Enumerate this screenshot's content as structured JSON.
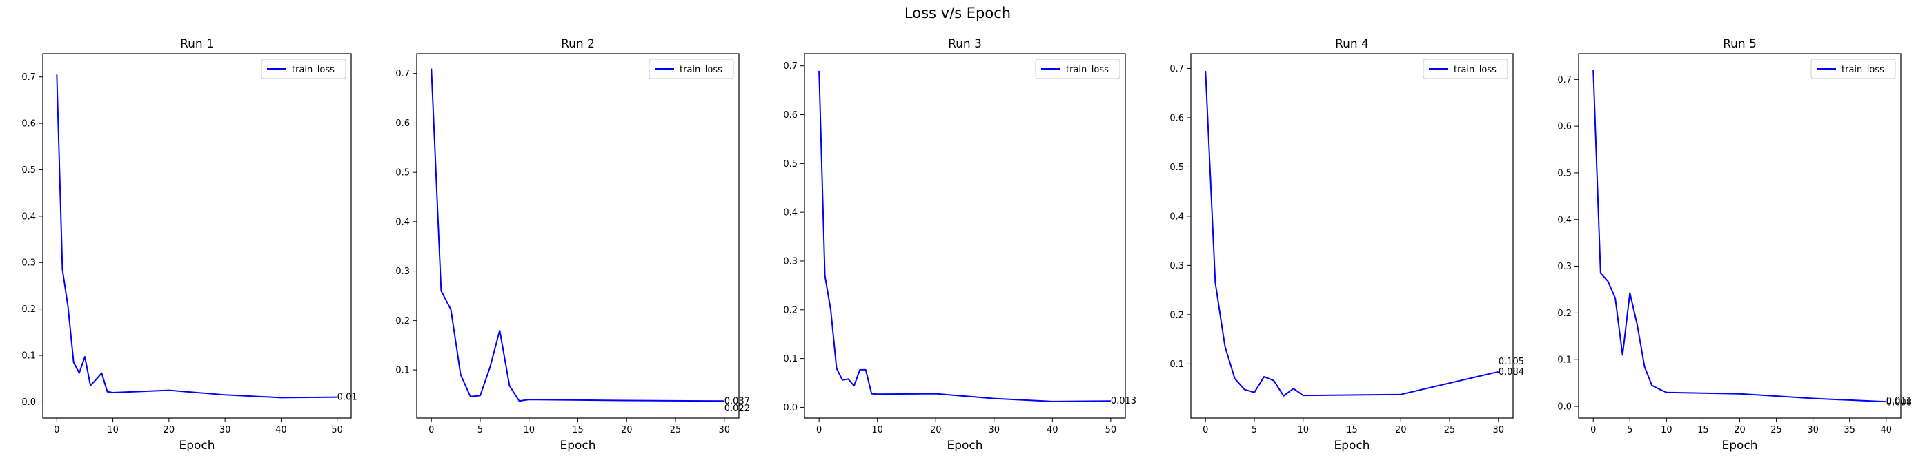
{
  "figure": {
    "title": "Loss v/s Epoch"
  },
  "colors": {
    "line": "#0000ff",
    "axes": "#000000",
    "background": "#ffffff"
  },
  "chart_data": [
    {
      "type": "line",
      "title": "Run 1",
      "xlabel": "Epoch",
      "ylabel": "",
      "xlim": [
        -2.5,
        52.5
      ],
      "ylim": [
        -0.035,
        0.75
      ],
      "xticks": [
        0,
        10,
        20,
        30,
        40,
        50
      ],
      "yticks": [
        0.0,
        0.1,
        0.2,
        0.3,
        0.4,
        0.5,
        0.6,
        0.7
      ],
      "legend": "upper right",
      "grid": false,
      "series": [
        {
          "name": "train_loss",
          "x": [
            0,
            1,
            2,
            3,
            4,
            5,
            6,
            7,
            8,
            9,
            10,
            20,
            30,
            40,
            50
          ],
          "y": [
            0.705,
            0.285,
            0.205,
            0.085,
            0.062,
            0.097,
            0.035,
            0.048,
            0.062,
            0.022,
            0.02,
            0.025,
            0.015,
            0.009,
            0.01
          ]
        }
      ],
      "annotations": [
        {
          "x": 50,
          "y": 0.01,
          "text": "0.01"
        }
      ]
    },
    {
      "type": "line",
      "title": "Run 2",
      "xlabel": "Epoch",
      "ylabel": "",
      "xlim": [
        -1.5,
        31.5
      ],
      "ylim": [
        0.0025,
        0.74
      ],
      "xticks": [
        0,
        5,
        10,
        15,
        20,
        25,
        30
      ],
      "yticks": [
        0.1,
        0.2,
        0.3,
        0.4,
        0.5,
        0.6,
        0.7
      ],
      "legend": "upper right",
      "grid": false,
      "series": [
        {
          "name": "train_loss",
          "x": [
            0,
            1,
            2,
            3,
            4,
            5,
            6,
            7,
            8,
            9,
            10,
            20,
            30
          ],
          "y": [
            0.71,
            0.26,
            0.222,
            0.09,
            0.046,
            0.048,
            0.105,
            0.18,
            0.068,
            0.037,
            0.04,
            0.038,
            0.037
          ]
        }
      ],
      "annotations": [
        {
          "x": 30,
          "y": 0.037,
          "text": "0.037"
        },
        {
          "x": 30,
          "y": 0.022,
          "text": "0.022"
        }
      ]
    },
    {
      "type": "line",
      "title": "Run 3",
      "xlabel": "Epoch",
      "ylabel": "",
      "xlim": [
        -2.5,
        52.5
      ],
      "ylim": [
        -0.022,
        0.725
      ],
      "xticks": [
        0,
        10,
        20,
        30,
        40,
        50
      ],
      "yticks": [
        0.0,
        0.1,
        0.2,
        0.3,
        0.4,
        0.5,
        0.6,
        0.7
      ],
      "legend": "upper right",
      "grid": false,
      "series": [
        {
          "name": "train_loss",
          "x": [
            0,
            1,
            2,
            3,
            4,
            5,
            6,
            7,
            8,
            9,
            10,
            20,
            30,
            40,
            50
          ],
          "y": [
            0.69,
            0.27,
            0.2,
            0.08,
            0.056,
            0.058,
            0.044,
            0.077,
            0.077,
            0.028,
            0.027,
            0.028,
            0.018,
            0.012,
            0.013
          ]
        }
      ],
      "annotations": [
        {
          "x": 50,
          "y": 0.013,
          "text": "0.013"
        }
      ]
    },
    {
      "type": "line",
      "title": "Run 4",
      "xlabel": "Epoch",
      "ylabel": "",
      "xlim": [
        -1.5,
        31.5
      ],
      "ylim": [
        -0.01,
        0.73
      ],
      "xticks": [
        0,
        5,
        10,
        15,
        20,
        25,
        30
      ],
      "yticks": [
        0.1,
        0.2,
        0.3,
        0.4,
        0.5,
        0.6,
        0.7
      ],
      "legend": "upper right",
      "grid": false,
      "series": [
        {
          "name": "train_loss",
          "x": [
            0,
            1,
            2,
            3,
            4,
            5,
            6,
            7,
            8,
            9,
            10,
            20,
            30
          ],
          "y": [
            0.695,
            0.265,
            0.135,
            0.07,
            0.048,
            0.042,
            0.074,
            0.066,
            0.035,
            0.05,
            0.036,
            0.038,
            0.084
          ]
        }
      ],
      "annotations": [
        {
          "x": 30,
          "y": 0.105,
          "text": "0.105"
        },
        {
          "x": 30,
          "y": 0.084,
          "text": "0.084"
        }
      ]
    },
    {
      "type": "line",
      "title": "Run 5",
      "xlabel": "Epoch",
      "ylabel": "",
      "xlim": [
        -2.0,
        42.0
      ],
      "ylim": [
        -0.025,
        0.755
      ],
      "xticks": [
        0,
        5,
        10,
        15,
        20,
        25,
        30,
        35,
        40
      ],
      "yticks": [
        0.0,
        0.1,
        0.2,
        0.3,
        0.4,
        0.5,
        0.6,
        0.7
      ],
      "legend": "upper right",
      "grid": false,
      "series": [
        {
          "name": "train_loss",
          "x": [
            0,
            1,
            2,
            3,
            4,
            5,
            6,
            7,
            8,
            9,
            10,
            20,
            30,
            40
          ],
          "y": [
            0.72,
            0.285,
            0.268,
            0.232,
            0.11,
            0.243,
            0.175,
            0.085,
            0.045,
            0.037,
            0.03,
            0.027,
            0.017,
            0.01
          ]
        }
      ],
      "annotations": [
        {
          "x": 40,
          "y": 0.012,
          "text": "0.011"
        },
        {
          "x": 40,
          "y": 0.008,
          "text": "0.008"
        }
      ]
    }
  ]
}
